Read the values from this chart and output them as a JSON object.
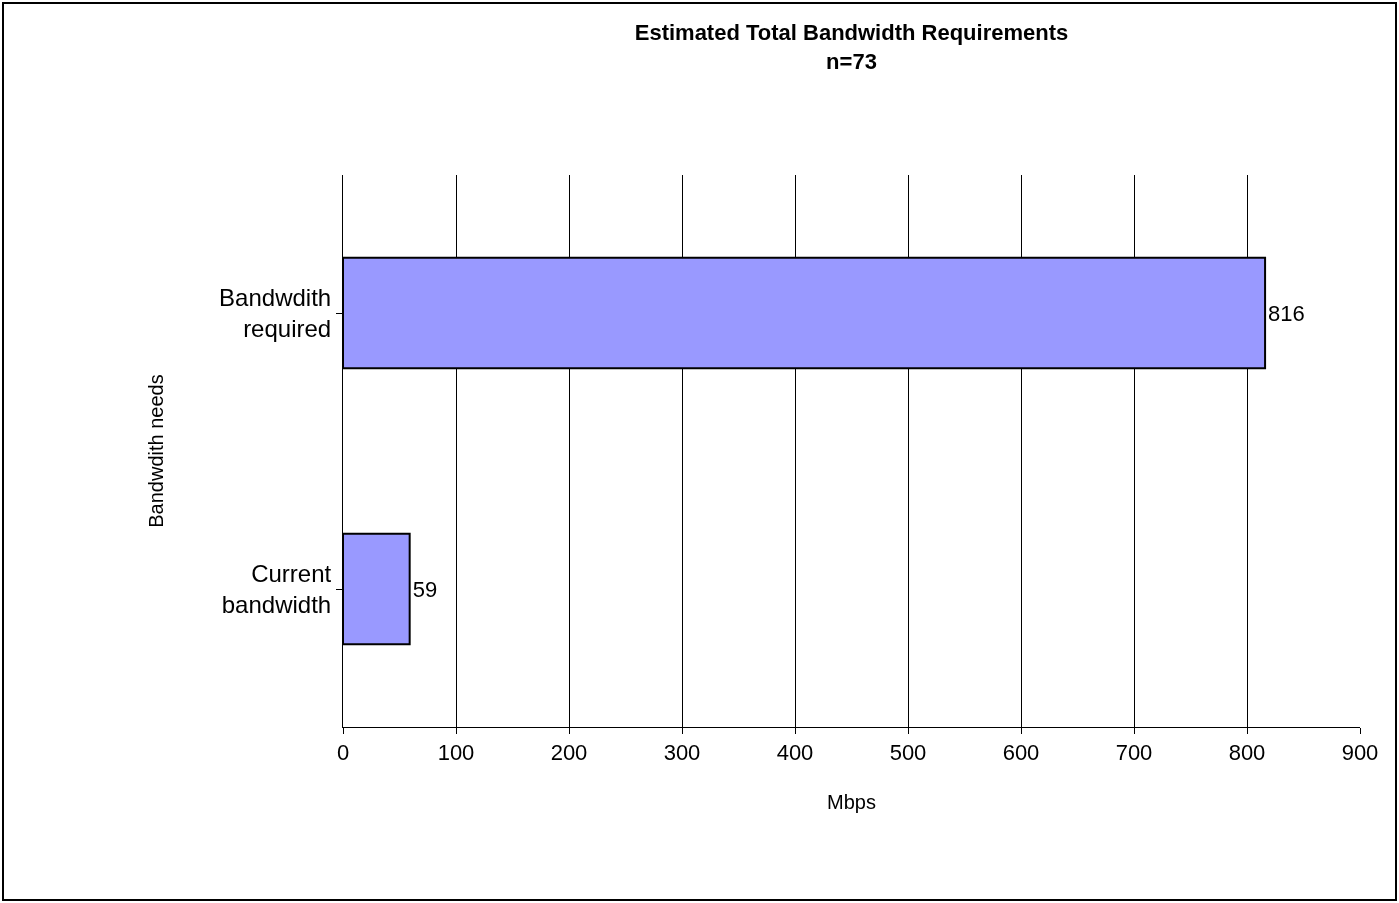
{
  "chart_data": {
    "type": "bar",
    "orientation": "horizontal",
    "title": "Estimated Total Bandwidth Requirements",
    "subtitle": "n=73",
    "xlabel": "Mbps",
    "ylabel": "Bandwdith needs",
    "categories": [
      "Bandwdith\nrequired",
      "Current\nbandwidth"
    ],
    "values": [
      816,
      59
    ],
    "color": "#9999ff",
    "xlim": [
      0,
      900
    ],
    "xticks": [
      0,
      100,
      200,
      300,
      400,
      500,
      600,
      700,
      800,
      900
    ],
    "grid": "x",
    "data_labels": true
  }
}
